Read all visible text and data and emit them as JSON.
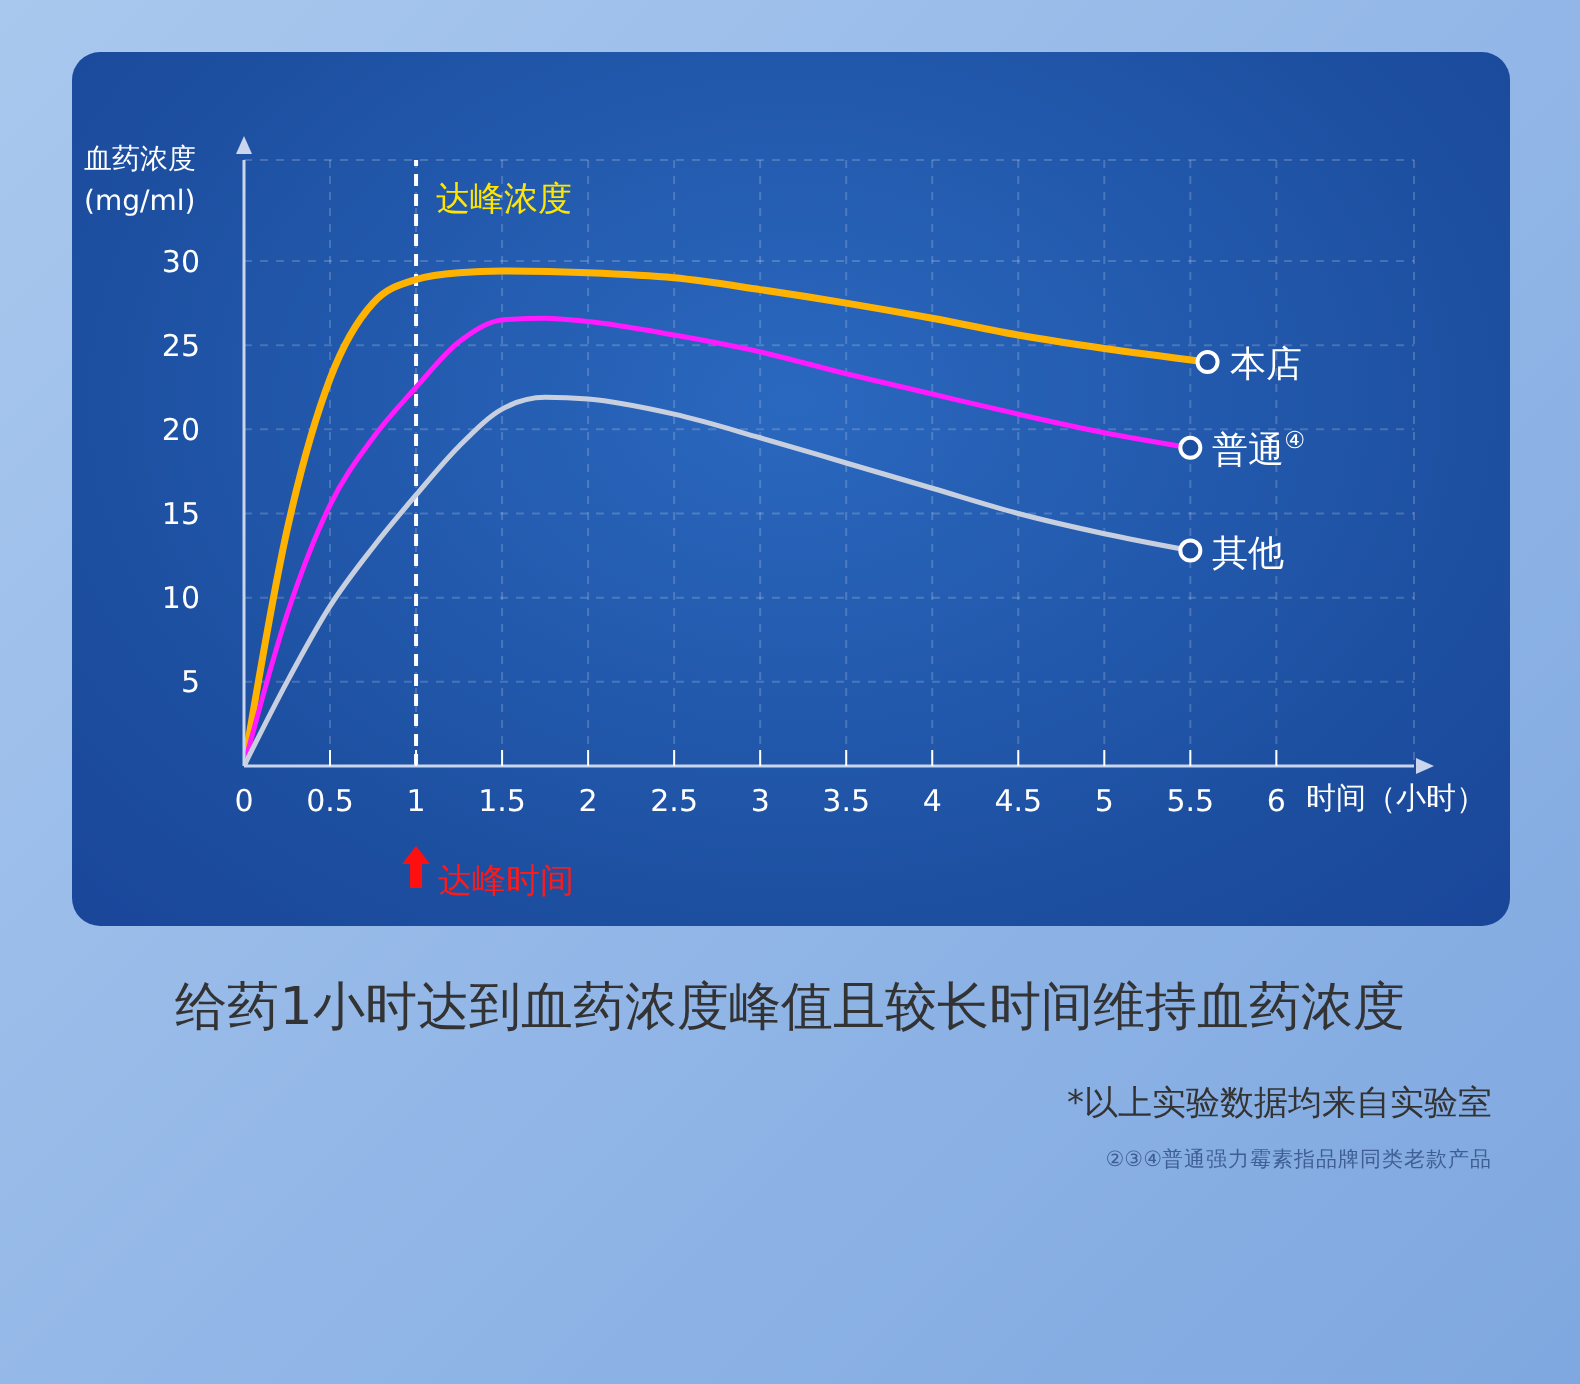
{
  "chart_data": {
    "type": "line",
    "title": "给药1小时达到血药浓度峰值且较长时间维持血药浓度",
    "ylabel": "血药浓度\n(mg/ml)",
    "xlabel": "时间（小时）",
    "xlim": [
      0,
      6.8
    ],
    "xticks": [
      0,
      0.5,
      1,
      1.5,
      2,
      2.5,
      3,
      3.5,
      4,
      4.5,
      5,
      5.5,
      6
    ],
    "ylim": [
      0,
      36
    ],
    "yticks": [
      5,
      10,
      15,
      20,
      25,
      30
    ],
    "grid": true,
    "line_style": "solid",
    "ref_lines": [
      {
        "axis": "x",
        "value": 1,
        "label": "达峰浓度",
        "color": "#ffffff",
        "line_style": "dashed"
      }
    ],
    "annotations": [
      "达峰时间",
      "*以上实验数据均来自实验室",
      "②③④普通强力霉素指品牌同类老款产品"
    ],
    "series": [
      {
        "name": "本店",
        "color": "#ffb300",
        "x": [
          0,
          0.25,
          0.5,
          0.75,
          1,
          1.25,
          1.5,
          2,
          2.5,
          3,
          3.5,
          4,
          4.5,
          5,
          5.6
        ],
        "values": [
          0,
          14,
          23,
          27.5,
          28.9,
          29.3,
          29.4,
          29.3,
          29,
          28.3,
          27.5,
          26.6,
          25.6,
          24.8,
          24
        ]
      },
      {
        "name": "普通$^{④}$",
        "color": "#ff1aff",
        "x": [
          0,
          0.25,
          0.5,
          0.75,
          1,
          1.25,
          1.5,
          1.75,
          2,
          2.5,
          3,
          3.5,
          4,
          4.5,
          5,
          5.5
        ],
        "values": [
          0,
          9,
          15.5,
          19.5,
          22.5,
          25.2,
          26.5,
          26.6,
          26.4,
          25.6,
          24.6,
          23.3,
          22.1,
          20.9,
          19.8,
          18.9
        ]
      },
      {
        "name": "其他",
        "color": "#c8d0e0",
        "x": [
          0,
          0.25,
          0.5,
          0.75,
          1,
          1.25,
          1.5,
          1.75,
          2,
          2.5,
          3,
          3.5,
          4,
          4.5,
          5,
          5.5
        ],
        "values": [
          0,
          5,
          9.5,
          13,
          16.1,
          19,
          21.2,
          21.9,
          21.8,
          20.9,
          19.5,
          18,
          16.5,
          15,
          13.8,
          12.8
        ]
      }
    ]
  }
}
